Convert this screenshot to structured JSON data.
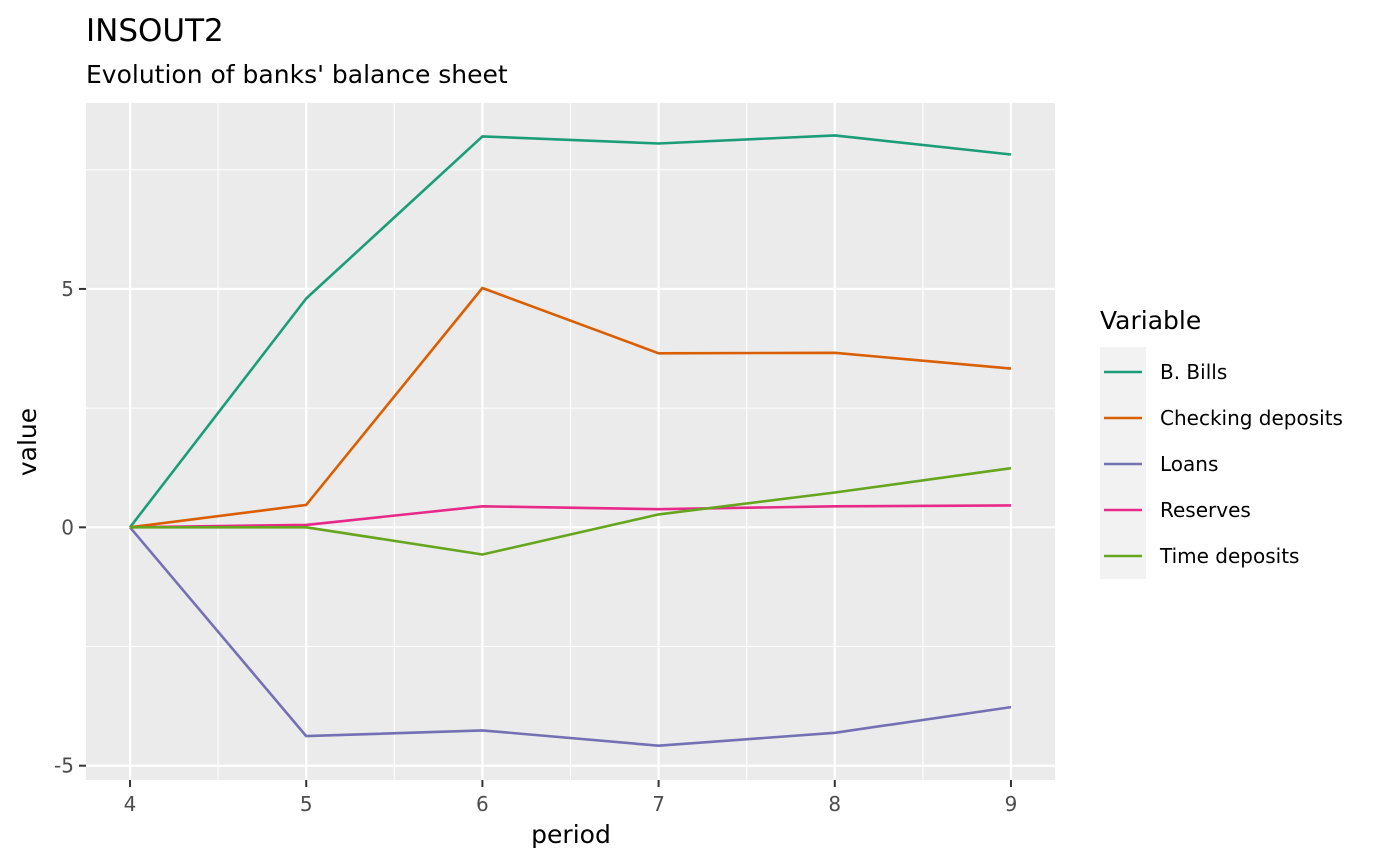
{
  "chart_data": {
    "type": "line",
    "title": "INSOUT2",
    "subtitle": "Evolution of banks' balance sheet",
    "xlabel": "period",
    "ylabel": "value",
    "x": [
      4,
      5,
      6,
      7,
      8,
      9
    ],
    "xlim": [
      3.75,
      9.25
    ],
    "ylim": [
      -5.3,
      8.9
    ],
    "x_ticks": [
      "4",
      "5",
      "6",
      "7",
      "8",
      "9"
    ],
    "y_ticks": [
      -5,
      0,
      5
    ],
    "y_tick_labels": [
      "-5",
      "0",
      "5"
    ],
    "grid": true,
    "legend": {
      "title": "Variable",
      "position": "right"
    },
    "series": [
      {
        "name": "B. Bills",
        "color": "#1B9E77",
        "values": [
          0,
          4.8,
          8.2,
          8.05,
          8.22,
          7.82
        ]
      },
      {
        "name": "Checking deposits",
        "color": "#D95F02",
        "values": [
          0,
          0.47,
          5.02,
          3.65,
          3.66,
          3.33
        ]
      },
      {
        "name": "Loans",
        "color": "#7570B3",
        "values": [
          0,
          -4.38,
          -4.26,
          -4.58,
          -4.31,
          -3.77
        ]
      },
      {
        "name": "Reserves",
        "color": "#E7298A",
        "values": [
          0,
          0.05,
          0.44,
          0.38,
          0.44,
          0.46
        ]
      },
      {
        "name": "Time deposits",
        "color": "#66A61E",
        "values": [
          0,
          0,
          -0.57,
          0.27,
          0.73,
          1.24
        ]
      }
    ]
  }
}
